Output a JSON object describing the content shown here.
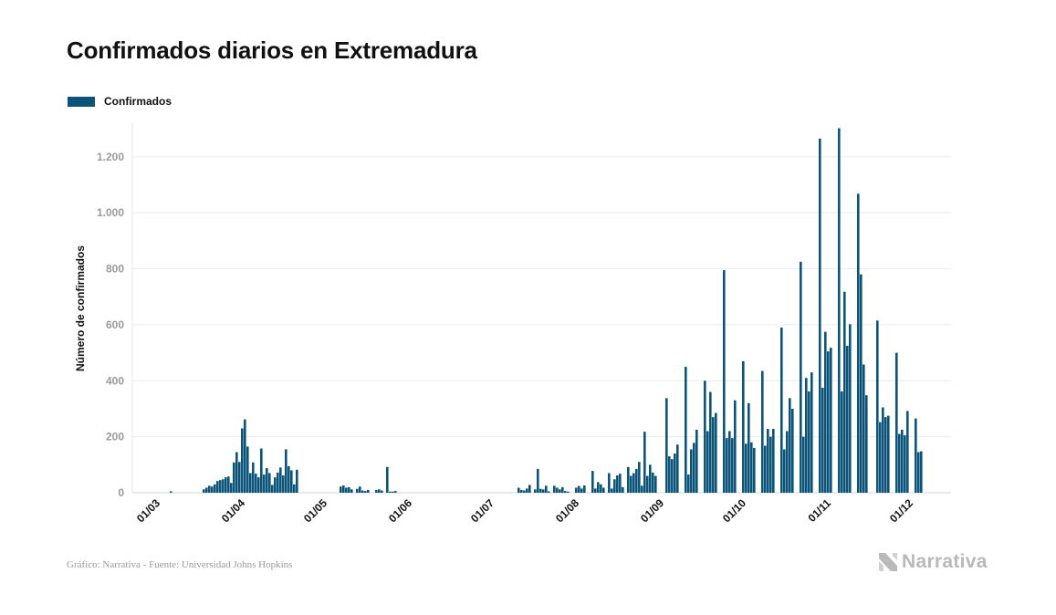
{
  "title": "Confirmados diarios en Extremadura",
  "legend": {
    "label": "Confirmados",
    "color": "#0b5378"
  },
  "footer": {
    "source": "Gráfico: Narrativa - Fuente: Universidad Johns Hopkins",
    "brand": "Narrativa",
    "brand_icon": "narrativa-logo-icon"
  },
  "chart_data": {
    "type": "bar",
    "title": "Confirmados diarios en Extremadura",
    "ylabel": "Número de confirmados",
    "xlabel": "",
    "ylim": [
      0,
      1320
    ],
    "yticks": [
      0,
      200,
      400,
      600,
      800,
      1000,
      1200
    ],
    "ytick_labels": [
      "0",
      "200",
      "400",
      "600",
      "800",
      "1.000",
      "1.200"
    ],
    "xtick_labels": [
      "01/03",
      "01/04",
      "01/05",
      "01/06",
      "01/07",
      "01/08",
      "01/09",
      "01/10",
      "01/11",
      "01/12"
    ],
    "x_start": "01/03",
    "x_end": "06/12",
    "grid": true,
    "legend_position": "top-left",
    "series": [
      {
        "name": "Confirmados",
        "color": "#0b5378",
        "values": [
          0,
          0,
          0,
          0,
          0,
          0,
          5,
          0,
          0,
          0,
          0,
          0,
          0,
          0,
          0,
          0,
          0,
          0,
          12,
          18,
          25,
          22,
          30,
          42,
          45,
          48,
          55,
          58,
          35,
          108,
          145,
          110,
          230,
          262,
          165,
          70,
          108,
          68,
          55,
          158,
          65,
          88,
          70,
          28,
          55,
          72,
          90,
          62,
          155,
          95,
          80,
          30,
          82,
          0,
          0,
          0,
          0,
          0,
          0,
          0,
          0,
          0,
          0,
          0,
          0,
          0,
          0,
          0,
          22,
          26,
          18,
          20,
          12,
          0,
          14,
          22,
          8,
          6,
          10,
          0,
          0,
          10,
          12,
          8,
          0,
          92,
          4,
          4,
          6,
          0,
          0,
          0,
          0,
          0,
          0,
          0,
          0,
          0,
          0,
          0,
          0,
          0,
          0,
          0,
          0,
          0,
          0,
          0,
          0,
          0,
          0,
          0,
          0,
          0,
          0,
          0,
          0,
          0,
          0,
          0,
          0,
          0,
          0,
          0,
          0,
          0,
          0,
          0,
          0,
          0,
          0,
          0,
          0,
          18,
          10,
          8,
          15,
          28,
          0,
          12,
          85,
          14,
          12,
          25,
          5,
          0,
          25,
          18,
          12,
          20,
          6,
          4,
          0,
          0,
          18,
          24,
          15,
          26,
          0,
          0,
          78,
          15,
          38,
          30,
          18,
          0,
          70,
          15,
          48,
          62,
          68,
          20,
          0,
          92,
          60,
          70,
          85,
          110,
          25,
          218,
          60,
          100,
          72,
          60,
          0,
          0,
          0,
          338,
          130,
          120,
          140,
          172,
          0,
          0,
          450,
          65,
          155,
          178,
          225,
          0,
          0,
          400,
          220,
          360,
          270,
          285,
          0,
          0,
          795,
          195,
          220,
          195,
          330,
          0,
          0,
          470,
          175,
          320,
          180,
          160,
          0,
          0,
          435,
          168,
          228,
          200,
          228,
          0,
          0,
          590,
          155,
          220,
          338,
          300,
          0,
          0,
          825,
          200,
          410,
          362,
          430,
          0,
          0,
          1265,
          375,
          575,
          505,
          518,
          0,
          0,
          1302,
          362,
          718,
          525,
          602,
          0,
          0,
          1068,
          780,
          458,
          348,
          0,
          0,
          0,
          615,
          252,
          305,
          270,
          275,
          0,
          0,
          500,
          210,
          225,
          205,
          292,
          0,
          0,
          265,
          145,
          148
        ]
      }
    ]
  }
}
